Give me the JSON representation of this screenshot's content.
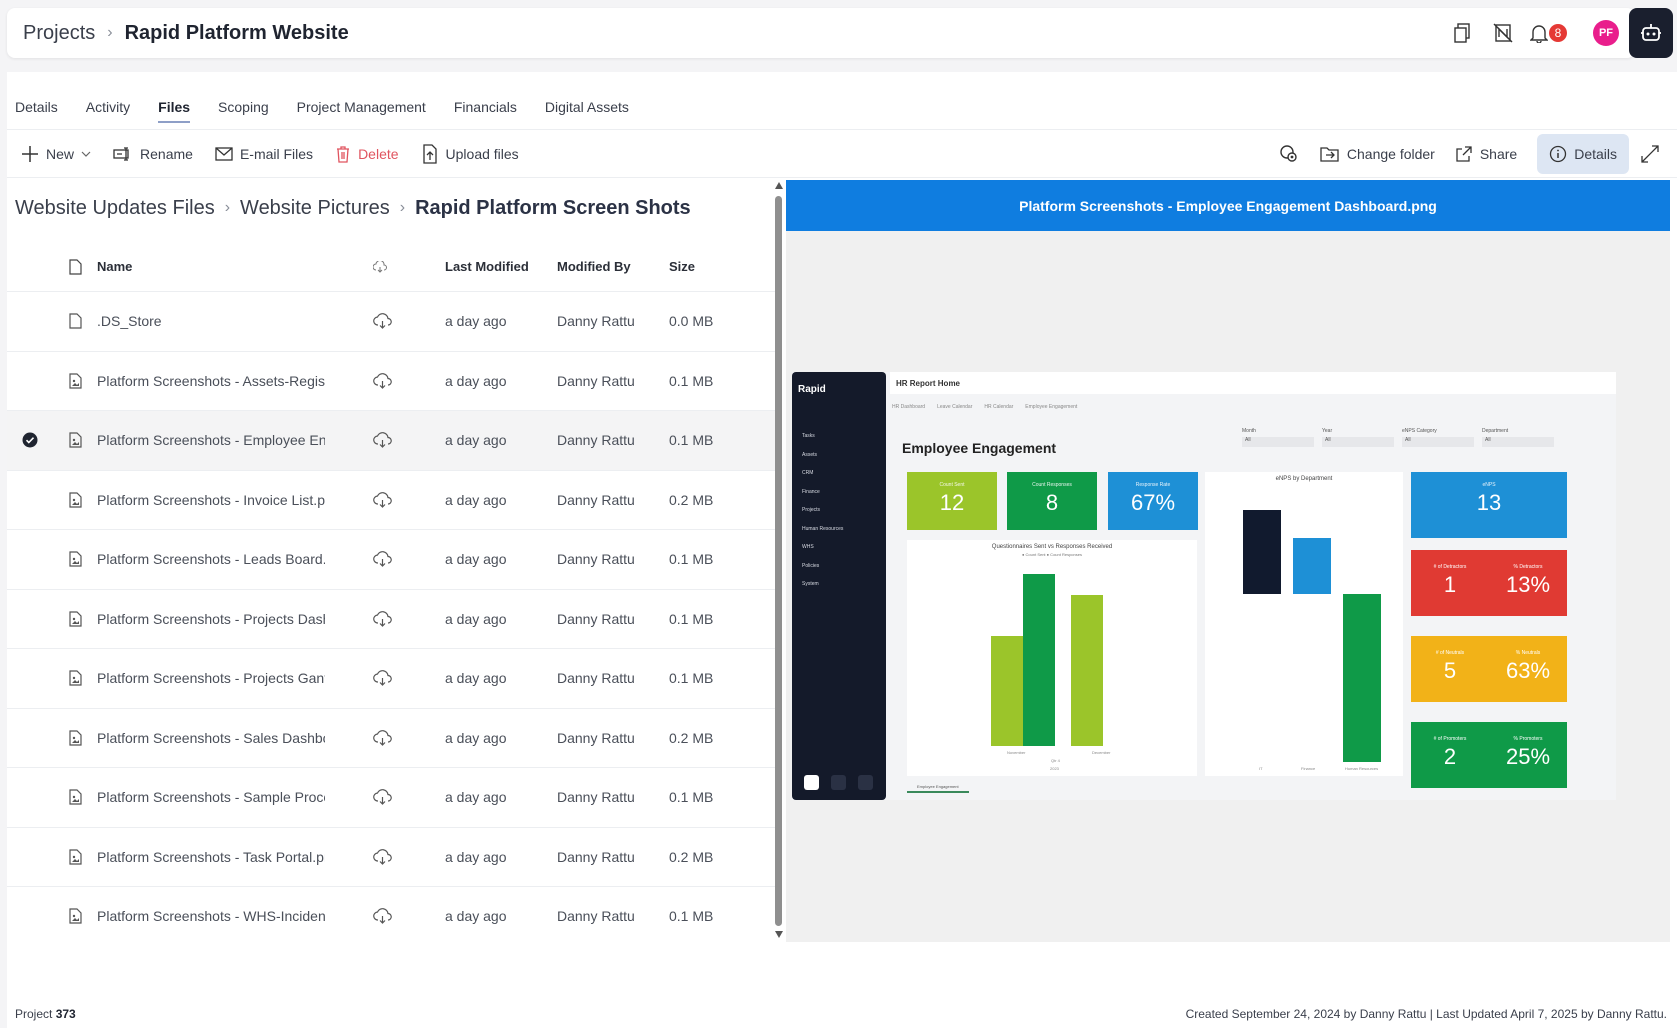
{
  "header": {
    "breadcrumb_root": "Projects",
    "breadcrumb_sep": "›",
    "title": "Rapid Platform Website",
    "notification_count": "8",
    "avatar_initials": "PF"
  },
  "tabs": [
    "Details",
    "Activity",
    "Files",
    "Scoping",
    "Project Management",
    "Financials",
    "Digital Assets"
  ],
  "toolbar": {
    "new": "New",
    "rename": "Rename",
    "email": "E-mail Files",
    "delete": "Delete",
    "upload": "Upload files",
    "change_folder": "Change folder",
    "share": "Share",
    "details": "Details"
  },
  "path": {
    "root": "Website Updates Files",
    "mid": "Website Pictures",
    "current": "Rapid Platform Screen Shots"
  },
  "table": {
    "headers": {
      "name": "Name",
      "modified": "Last Modified",
      "by": "Modified By",
      "size": "Size"
    },
    "rows": [
      {
        "name": ".DS_Store",
        "modified": "a day ago",
        "by": "Danny Rattu",
        "size": "0.0 MB",
        "selected": false
      },
      {
        "name": "Platform Screenshots - Assets-Registe",
        "modified": "a day ago",
        "by": "Danny Rattu",
        "size": "0.1 MB",
        "selected": false
      },
      {
        "name": "Platform Screenshots - Employee Eng",
        "modified": "a day ago",
        "by": "Danny Rattu",
        "size": "0.1 MB",
        "selected": true
      },
      {
        "name": "Platform Screenshots - Invoice List.png",
        "modified": "a day ago",
        "by": "Danny Rattu",
        "size": "0.2 MB",
        "selected": false
      },
      {
        "name": "Platform Screenshots - Leads Board.p",
        "modified": "a day ago",
        "by": "Danny Rattu",
        "size": "0.1 MB",
        "selected": false
      },
      {
        "name": "Platform Screenshots - Projects Dasht",
        "modified": "a day ago",
        "by": "Danny Rattu",
        "size": "0.1 MB",
        "selected": false
      },
      {
        "name": "Platform Screenshots - Projects Gantt",
        "modified": "a day ago",
        "by": "Danny Rattu",
        "size": "0.1 MB",
        "selected": false
      },
      {
        "name": "Platform Screenshots - Sales Dashboc",
        "modified": "a day ago",
        "by": "Danny Rattu",
        "size": "0.2 MB",
        "selected": false
      },
      {
        "name": "Platform Screenshots - Sample Proces",
        "modified": "a day ago",
        "by": "Danny Rattu",
        "size": "0.1 MB",
        "selected": false
      },
      {
        "name": "Platform Screenshots - Task Portal.png",
        "modified": "a day ago",
        "by": "Danny Rattu",
        "size": "0.2 MB",
        "selected": false
      },
      {
        "name": "Platform Screenshots - WHS-Incidents",
        "modified": "a day ago",
        "by": "Danny Rattu",
        "size": "0.1 MB",
        "selected": false
      }
    ]
  },
  "preview": {
    "title": "Platform Screenshots - Employee Engagement Dashboard.png",
    "image": {
      "brand": "Rapid",
      "header": "HR Report Home",
      "subtabs": [
        "HR Dashboard",
        "Leave Calendar",
        "HR Calendar",
        "Employee Engagement"
      ],
      "sidebar": [
        "Tasks",
        "Assets",
        "CRM",
        "Finance",
        "Projects",
        "Human Resources",
        "WHS",
        "Policies",
        "System"
      ],
      "page_title": "Employee Engagement",
      "filters": [
        "Month",
        "Year",
        "eNPS Category",
        "Department"
      ],
      "filter_value": "All",
      "kpis": [
        {
          "label": "Count Sent",
          "value": "12",
          "color": "#9bc52a"
        },
        {
          "label": "Count Responses",
          "value": "8",
          "color": "#0f9a48"
        },
        {
          "label": "Response Rate",
          "value": "67%",
          "color": "#1e90d6"
        }
      ],
      "enps": {
        "label": "eNPS",
        "value": "13",
        "color": "#1e90d6"
      },
      "detractors": {
        "l1": "# of Detractors",
        "v1": "1",
        "l2": "% Detractors",
        "v2": "13%",
        "color": "#e03a33"
      },
      "neutrals": {
        "l1": "# of Neutrals",
        "v1": "5",
        "l2": "% Neutrals",
        "v2": "63%",
        "color": "#f2b218"
      },
      "promoters": {
        "l1": "# of Promoters",
        "v1": "2",
        "l2": "% Promoters",
        "v2": "25%",
        "color": "#0f9a48"
      },
      "chart1_title": "Questionnaires Sent vs Responses Received",
      "chart1_legend": "● Count Sent  ● Count Responses",
      "chart1_x": [
        "November",
        "December"
      ],
      "chart1_sub": "Qtr 4",
      "chart1_year": "2023",
      "chart2_title": "eNPS by Department",
      "chart2_x": [
        "IT",
        "Finance",
        "Human Resources"
      ],
      "footer_tab": "Employee Engagement"
    }
  },
  "footer": {
    "project_label": "Project",
    "project_number": "373",
    "audit": "Created September 24, 2024 by Danny Rattu | Last Updated April 7, 2025 by Danny Rattu."
  }
}
